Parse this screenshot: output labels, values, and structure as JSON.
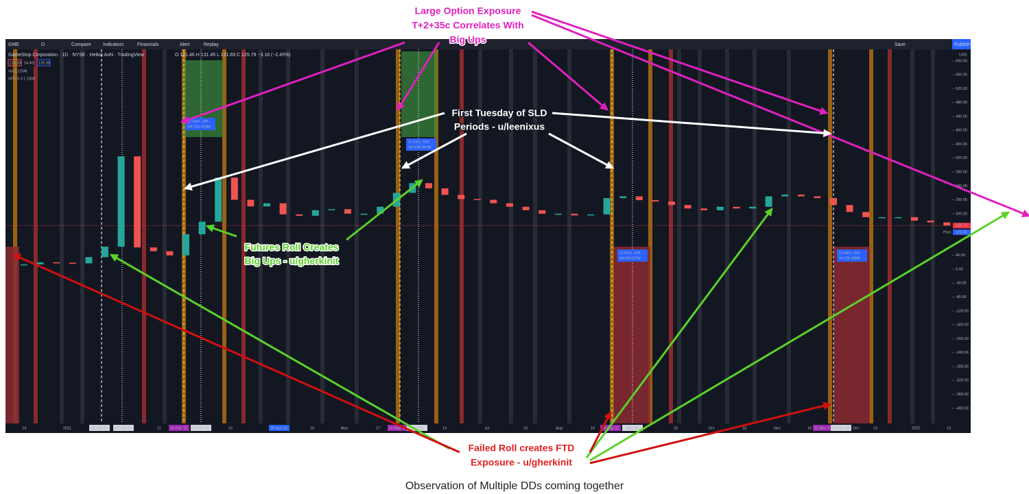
{
  "toolbar": {
    "symbol": "GME",
    "interval": "D",
    "compare": "Compare",
    "indicators": "Indicators",
    "financials": "Financials",
    "alert": "Alert",
    "replay": "Replay",
    "save": "Save",
    "publish": "Publish"
  },
  "legend": {
    "title": "GameStop Corporation · 1D · NYSE · Heikin Ashi · TradingView",
    "ohlc": "O 121.46 H 131.45 L 121.69 C 125.79 −3.16 (−2.45%)",
    "boxes": [
      "121.50",
      "14.40",
      "125.90"
    ],
    "volume": "Vol 2.215M",
    "gfc": "GFC 5 3 1 1000"
  },
  "price_axis": {
    "currency": "USD",
    "ticks": [
      {
        "value": 600,
        "label": "600.00"
      },
      {
        "value": 560,
        "label": "560.00"
      },
      {
        "value": 520,
        "label": "520.00"
      },
      {
        "value": 480,
        "label": "480.00"
      },
      {
        "value": 440,
        "label": "440.00"
      },
      {
        "value": 400,
        "label": "400.00"
      },
      {
        "value": 360,
        "label": "360.00"
      },
      {
        "value": 320,
        "label": "320.00"
      },
      {
        "value": 280,
        "label": "280.00"
      },
      {
        "value": 240,
        "label": "240.00"
      },
      {
        "value": 200,
        "label": "200.00"
      },
      {
        "value": 160,
        "label": "160.00"
      },
      {
        "value": 40,
        "label": "40.00"
      },
      {
        "value": 0,
        "label": "0.00"
      },
      {
        "value": -40,
        "label": "-40.00"
      },
      {
        "value": -80,
        "label": "-80.00"
      },
      {
        "value": -120,
        "label": "-120.00"
      },
      {
        "value": -160,
        "label": "-160.00"
      },
      {
        "value": -200,
        "label": "-200.00"
      },
      {
        "value": -240,
        "label": "-240.00"
      },
      {
        "value": -280,
        "label": "-280.00"
      },
      {
        "value": -320,
        "label": "-320.00"
      },
      {
        "value": -360,
        "label": "-360.00"
      },
      {
        "value": -400,
        "label": "-400.00"
      }
    ],
    "last_price": {
      "value": 125.79,
      "label": "125.79"
    },
    "post_label": "Post",
    "post_price": {
      "value": 122.4,
      "label": "122.40"
    }
  },
  "time_axis": [
    "14",
    "2021",
    "19 Jan '21",
    "27 Jan '21",
    "11",
    "22 Feb '21",
    "02 Mar '21",
    "15",
    "05 Apr '21",
    "19",
    "May",
    "17",
    "24 May '21",
    "Jun '21",
    "14",
    "Jul",
    "19",
    "Aug",
    "16",
    "24 Aug '21",
    "Aug '21",
    "20",
    "Oct",
    "18",
    "Nov",
    "15",
    "22 Nov '21",
    "24 Nov '21",
    "Dec",
    "13",
    "2022",
    "13"
  ],
  "weekly_price": [
    14,
    20,
    19,
    17,
    35,
    65,
    325,
    63,
    52,
    40,
    101,
    137,
    264,
    200,
    181,
    190,
    158,
    154,
    170,
    173,
    160,
    160,
    180,
    220,
    248,
    233,
    214,
    202,
    200,
    190,
    180,
    170,
    160,
    160,
    155,
    158,
    205,
    210,
    199,
    195,
    185,
    175,
    170,
    180,
    175,
    180,
    210,
    215,
    210,
    205,
    185,
    165,
    150,
    150,
    150,
    140,
    135,
    125.79
  ],
  "measurements": [
    {
      "bars": "12 bars, 16d",
      "volume": "Vol 701.919M"
    },
    {
      "bars": "11 bars, 16d",
      "volume": "Vol 180.467M"
    },
    {
      "bars": "11 bars, 16d",
      "volume": "Vol 68.027M"
    },
    {
      "bars": "11 bars, 16d",
      "volume": "Vol 29.169M"
    }
  ],
  "annotations": {
    "option_exposure": [
      "Large Option Exposure",
      "T+2+35c Correlates With",
      "Big Ups"
    ],
    "first_tuesday": [
      "First Tuesday of SLD",
      "Periods - u/leenixus"
    ],
    "futures_roll": [
      "Futures Roll Creates",
      "Big Ups - u/gherkinit"
    ],
    "failed_roll": [
      "Failed Roll creates FTD",
      "Exposure - u/gherkinit"
    ]
  },
  "caption": "Observation of Multiple DDs coming together"
}
